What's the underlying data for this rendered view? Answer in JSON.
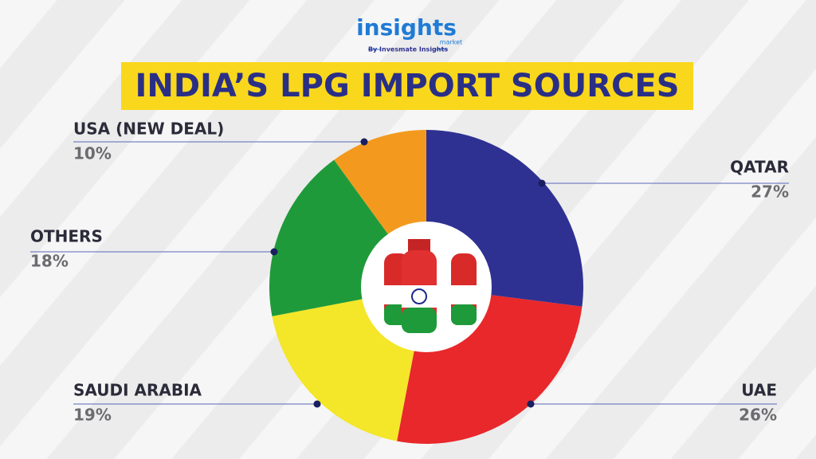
{
  "brand": {
    "name": "insights",
    "sub": "market",
    "tagline": "By Invesmate Insights"
  },
  "chart_data": {
    "type": "pie",
    "title": "INDIA’S LPG IMPORT SOURCES",
    "categories": [
      "QATAR",
      "UAE",
      "SAUDI ARABIA",
      "OTHERS",
      "USA (NEW DEAL)"
    ],
    "values": [
      27,
      26,
      19,
      18,
      10
    ],
    "value_labels": [
      "27%",
      "26%",
      "19%",
      "18%",
      "10%"
    ],
    "colors": [
      "#2e3192",
      "#e8282b",
      "#f4e628",
      "#1f9a3a",
      "#f39a1e"
    ],
    "donut": true
  }
}
